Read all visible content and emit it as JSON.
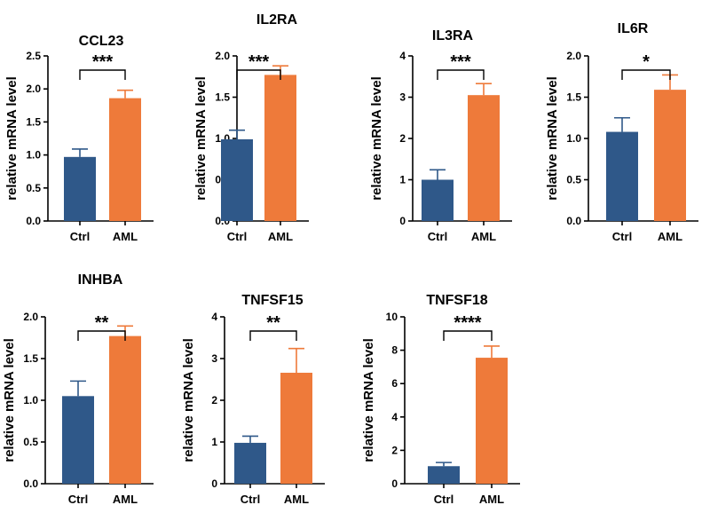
{
  "colors": {
    "ctrl": "#2f5889",
    "aml": "#ee7a3a",
    "axis": "#000000"
  },
  "chart_data": [
    {
      "type": "bar",
      "title": "CCL23",
      "ylabel": "relative mRNA level",
      "categories": [
        "Ctrl",
        "AML"
      ],
      "values": [
        0.97,
        1.86
      ],
      "errors": [
        0.12,
        0.12
      ],
      "ylim": [
        0,
        2.5
      ],
      "ticks": [
        "0.0",
        "0.5",
        "1.0",
        "1.5",
        "2.0",
        "2.5"
      ],
      "significance": "***"
    },
    {
      "type": "bar",
      "title": "IL2RA",
      "ylabel": "relative mRNA level",
      "categories": [
        "Ctrl",
        "AML"
      ],
      "values": [
        0.99,
        1.77
      ],
      "errors": [
        0.11,
        0.11
      ],
      "ylim": [
        0,
        2.0
      ],
      "ticks": [
        "0.0",
        "0.5",
        "1.0",
        "1.5",
        "2.0"
      ],
      "significance": "***"
    },
    {
      "type": "bar",
      "title": "IL3RA",
      "ylabel": "relative mRNA level",
      "categories": [
        "Ctrl",
        "AML"
      ],
      "values": [
        1.0,
        3.05
      ],
      "errors": [
        0.24,
        0.28
      ],
      "ylim": [
        0,
        4
      ],
      "ticks": [
        "0",
        "1",
        "2",
        "3",
        "4"
      ],
      "significance": "***"
    },
    {
      "type": "bar",
      "title": "IL6R",
      "ylabel": "relative mRNA level",
      "categories": [
        "Ctrl",
        "AML"
      ],
      "values": [
        1.08,
        1.59
      ],
      "errors": [
        0.17,
        0.18
      ],
      "ylim": [
        0,
        2.0
      ],
      "ticks": [
        "0.0",
        "0.5",
        "1.0",
        "1.5",
        "2.0"
      ],
      "significance": "*"
    },
    {
      "type": "bar",
      "title": "INHBA",
      "ylabel": "relative mRNA level",
      "categories": [
        "Ctrl",
        "AML"
      ],
      "values": [
        1.05,
        1.77
      ],
      "errors": [
        0.18,
        0.12
      ],
      "ylim": [
        0,
        2.0
      ],
      "ticks": [
        "0.0",
        "0.5",
        "1.0",
        "1.5",
        "2.0"
      ],
      "significance": "**"
    },
    {
      "type": "bar",
      "title": "TNFSF15",
      "ylabel": "relative mRNA level",
      "categories": [
        "Ctrl",
        "AML"
      ],
      "values": [
        0.98,
        2.66
      ],
      "errors": [
        0.16,
        0.58
      ],
      "ylim": [
        0,
        4
      ],
      "ticks": [
        "0",
        "1",
        "2",
        "3",
        "4"
      ],
      "significance": "**"
    },
    {
      "type": "bar",
      "title": "TNFSF18",
      "ylabel": "relative mRNA level",
      "categories": [
        "Ctrl",
        "AML"
      ],
      "values": [
        1.05,
        7.55
      ],
      "errors": [
        0.22,
        0.7
      ],
      "ylim": [
        0,
        10
      ],
      "ticks": [
        "0",
        "2",
        "4",
        "6",
        "8",
        "10"
      ],
      "significance": "****"
    }
  ]
}
